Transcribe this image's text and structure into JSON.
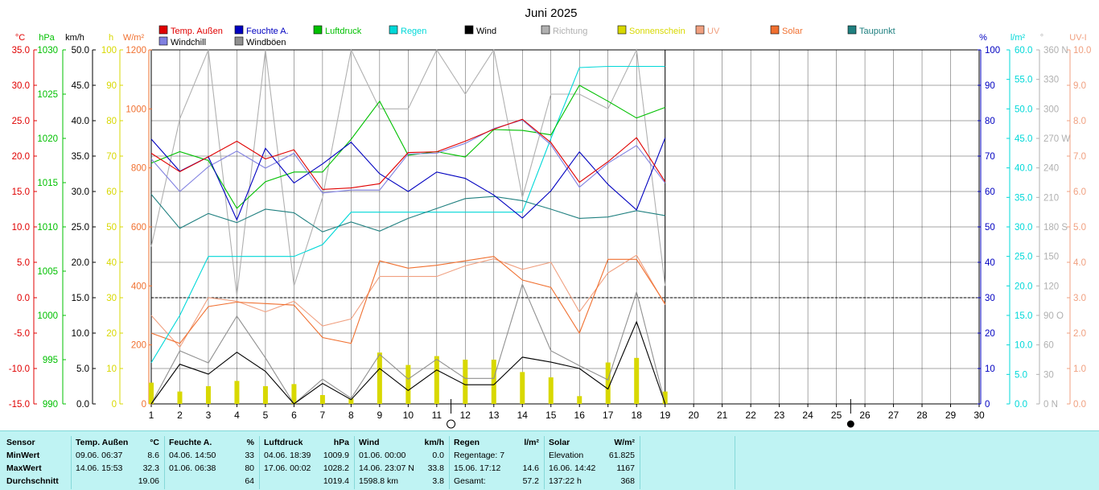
{
  "chart_data": {
    "type": "line",
    "title": "Juni 2025",
    "days": [
      1,
      2,
      3,
      4,
      5,
      6,
      7,
      8,
      9,
      10,
      11,
      12,
      13,
      14,
      15,
      16,
      17,
      18,
      19,
      20,
      21,
      22,
      23,
      24,
      25,
      26,
      27,
      28,
      29,
      30
    ],
    "legend_row1": [
      {
        "label": "Temp. Außen",
        "color": "#e00000"
      },
      {
        "label": "Feuchte A.",
        "color": "#0000c0"
      },
      {
        "label": "Luftdruck",
        "color": "#00c000"
      },
      {
        "label": "Regen",
        "color": "#00d8d8"
      },
      {
        "label": "Wind",
        "color": "#000000"
      },
      {
        "label": "Richtung",
        "color": "#b0b0b0"
      },
      {
        "label": "Sonnenschein",
        "color": "#d8d800"
      },
      {
        "label": "UV",
        "color": "#f0a080"
      },
      {
        "label": "Solar",
        "color": "#f07030"
      },
      {
        "label": "Taupunkt",
        "color": "#208080"
      }
    ],
    "legend_row2": [
      {
        "label": "Windchill",
        "color": "#8080e0"
      },
      {
        "label": "Windböen",
        "color": "#909090"
      }
    ],
    "axes": {
      "temp": {
        "unit": "°C",
        "ticks": [
          "35.0",
          "30.0",
          "25.0",
          "20.0",
          "15.0",
          "10.0",
          "5.0",
          "0.0",
          "-5.0",
          "-10.0",
          "-15.0"
        ],
        "color": "#e00000"
      },
      "pressure": {
        "unit": "hPa",
        "ticks": [
          "1030",
          "1025",
          "1020",
          "1015",
          "1010",
          "1005",
          "1000",
          "995",
          "990"
        ],
        "color": "#00c000"
      },
      "wind": {
        "unit": "km/h",
        "ticks": [
          "50.0",
          "45.0",
          "40.0",
          "35.0",
          "30.0",
          "25.0",
          "20.0",
          "15.0",
          "10.0",
          "5.0",
          "0.0"
        ],
        "color": "#000000"
      },
      "sunhours": {
        "unit": "h",
        "ticks": [
          "100",
          "90",
          "80",
          "70",
          "60",
          "50",
          "40",
          "30",
          "20",
          "10",
          "0"
        ],
        "color": "#d8d800"
      },
      "solar": {
        "unit": "W/m²",
        "ticks": [
          "1200",
          "1000",
          "800",
          "600",
          "400",
          "200",
          "0"
        ],
        "color": "#f07030"
      },
      "humidity": {
        "unit": "%",
        "ticks": [
          "100",
          "90",
          "80",
          "70",
          "60",
          "50",
          "40",
          "30",
          "20",
          "10",
          "0"
        ],
        "color": "#0000c0"
      },
      "rain": {
        "unit": "l/m²",
        "ticks": [
          "60.0",
          "55.0",
          "50.0",
          "45.0",
          "40.0",
          "35.0",
          "30.0",
          "25.0",
          "20.0",
          "15.0",
          "10.0",
          "5.0",
          "0.0"
        ],
        "color": "#00d8d8"
      },
      "direction": {
        "unit": "°",
        "ticks": [
          "360 N",
          "330",
          "300",
          "270 W",
          "240",
          "210",
          "180 S",
          "150",
          "120",
          "90 O",
          "60",
          "30",
          "0 N"
        ],
        "color": "#b0b0b0"
      },
      "uv": {
        "unit": "UV-I",
        "ticks": [
          "10.0",
          "9.0",
          "8.0",
          "7.0",
          "6.0",
          "5.0",
          "4.0",
          "3.0",
          "2.0",
          "1.0",
          "0.0"
        ],
        "color": "#f0a080"
      }
    },
    "series": [
      {
        "name": "Temp. Außen",
        "axis": "temp",
        "color": "#e00000",
        "values": [
          20.4,
          17.8,
          19.9,
          22.1,
          19.6,
          20.9,
          15.3,
          15.5,
          16.1,
          20.5,
          20.6,
          22.1,
          23.8,
          25.2,
          21.9,
          16.3,
          19.2,
          22.6,
          16.4
        ]
      },
      {
        "name": "Windchill",
        "axis": "temp",
        "color": "#8080e0",
        "values": [
          19.6,
          15.0,
          18.5,
          20.7,
          18.3,
          20.4,
          14.8,
          15.2,
          15.2,
          20.3,
          20.4,
          21.8,
          23.9,
          25.1,
          21.6,
          15.6,
          19.0,
          21.5,
          16.2
        ]
      },
      {
        "name": "Feuchte A.",
        "axis": "humidity",
        "color": "#0000c0",
        "values": [
          74.8,
          65.7,
          69.8,
          52.0,
          72.2,
          62.4,
          67.8,
          73.9,
          65.0,
          60.0,
          65.5,
          63.7,
          59.0,
          52.5,
          60.2,
          71.2,
          62.0,
          54.8,
          75.1
        ]
      },
      {
        "name": "Luftdruck",
        "axis": "pressure",
        "color": "#00c000",
        "values": [
          1017.2,
          1018.5,
          1017.5,
          1012.1,
          1015.1,
          1016.2,
          1016.2,
          1019.9,
          1024.2,
          1018.1,
          1018.5,
          1017.9,
          1021.0,
          1020.9,
          1020.4,
          1026.0,
          1024.2,
          1022.3,
          1023.5
        ]
      },
      {
        "name": "Taupunkt",
        "axis": "temp",
        "color": "#208080",
        "values": [
          14.6,
          9.8,
          11.9,
          10.6,
          12.5,
          12.0,
          9.3,
          10.7,
          9.4,
          11.2,
          12.6,
          14.0,
          14.3,
          13.7,
          12.5,
          11.2,
          11.4,
          12.3,
          11.6
        ]
      },
      {
        "name": "Regen",
        "axis": "rain",
        "color": "#00d8d8",
        "values": [
          7.0,
          15.0,
          25.0,
          25.0,
          25.0,
          25.0,
          27.0,
          32.5,
          32.5,
          32.5,
          32.5,
          32.5,
          32.5,
          32.5,
          45.0,
          57.0,
          57.2,
          57.2,
          57.2
        ]
      },
      {
        "name": "Wind",
        "axis": "wind",
        "color": "#000000",
        "values": [
          0.0,
          5.6,
          4.2,
          7.3,
          4.6,
          0.0,
          2.9,
          0.6,
          5.0,
          1.9,
          4.8,
          2.7,
          2.7,
          6.6,
          5.9,
          5.0,
          2.1,
          11.6,
          0.0
        ]
      },
      {
        "name": "Windböen",
        "axis": "wind",
        "color": "#909090",
        "values": [
          0.0,
          7.5,
          5.8,
          12.4,
          6.5,
          0.0,
          3.5,
          0.8,
          7.0,
          3.5,
          6.3,
          3.6,
          3.6,
          16.9,
          7.5,
          5.4,
          3.4,
          15.8,
          0.0
        ]
      },
      {
        "name": "Richtung",
        "axis": "direction",
        "color": "#b0b0b0",
        "values": [
          160,
          290,
          360,
          110,
          360,
          120,
          210,
          360,
          300,
          300,
          360,
          315,
          360,
          210,
          315,
          315,
          300,
          360,
          120
        ]
      },
      {
        "name": "UV",
        "axis": "uv",
        "color": "#f0a080",
        "values": [
          2.5,
          1.6,
          3.0,
          2.9,
          2.6,
          2.9,
          2.2,
          2.4,
          3.6,
          3.6,
          3.6,
          3.9,
          4.1,
          3.8,
          4.0,
          2.6,
          3.7,
          4.2,
          2.8
        ]
      },
      {
        "name": "Solar",
        "axis": "solar",
        "color": "#f07030",
        "values": [
          240,
          205,
          330,
          345,
          340,
          335,
          225,
          205,
          485,
          460,
          470,
          485,
          500,
          420,
          395,
          240,
          490,
          490,
          340
        ]
      },
      {
        "name": "Sonnenschein",
        "axis": "sunhours",
        "color": "#d8d800",
        "values": [
          6.0,
          3.5,
          5.0,
          6.5,
          5.0,
          5.6,
          2.5,
          1.5,
          14.5,
          11.0,
          13.5,
          12.5,
          12.5,
          9.0,
          7.5,
          2.2,
          11.7,
          13.0,
          3.5
        ]
      }
    ],
    "reference_line": {
      "axis": "temp",
      "value": 0.0
    },
    "moon_phases": [
      {
        "day": 11.5,
        "phase": "full"
      },
      {
        "day": 25.5,
        "phase": "new"
      }
    ]
  },
  "stats": {
    "sensor": {
      "header": "Sensor",
      "rows": [
        "MinWert",
        "MaxWert",
        "Durchschnitt"
      ]
    },
    "temp": {
      "header": "Temp. Außen",
      "unit": "°C",
      "rows": [
        [
          "09.06.  06:37",
          "8.6"
        ],
        [
          "14.06.  15:53",
          "32.3"
        ],
        [
          "",
          "19.06"
        ]
      ]
    },
    "humidity": {
      "header": "Feuchte A.",
      "unit": "%",
      "rows": [
        [
          "04.06.  14:50",
          "33"
        ],
        [
          "01.06.  06:38",
          "80"
        ],
        [
          "",
          "64"
        ]
      ]
    },
    "pressure": {
      "header": "Luftdruck",
      "unit": "hPa",
      "rows": [
        [
          "04.06.  18:39",
          "1009.9"
        ],
        [
          "17.06.  00:02",
          "1028.2"
        ],
        [
          "",
          "1019.4"
        ]
      ]
    },
    "wind": {
      "header": "Wind",
      "unit": "km/h",
      "rows": [
        [
          "01.06.  00:00",
          "0.0"
        ],
        [
          "14.06.  23:07  N",
          "33.8"
        ],
        [
          "1598.8 km",
          "3.8"
        ]
      ]
    },
    "rain": {
      "header": "Regen",
      "unit": "l/m²",
      "rows": [
        [
          "Regentage: 7",
          ""
        ],
        [
          "15.06.  17:12",
          "14.6"
        ],
        [
          "Gesamt:",
          "57.2"
        ]
      ]
    },
    "solar": {
      "header": "Solar",
      "unit": "W/m²",
      "rows": [
        [
          "Elevation",
          "61.825"
        ],
        [
          "16.06.  14:42",
          "1167"
        ],
        [
          "137:22 h",
          "368"
        ]
      ]
    }
  }
}
